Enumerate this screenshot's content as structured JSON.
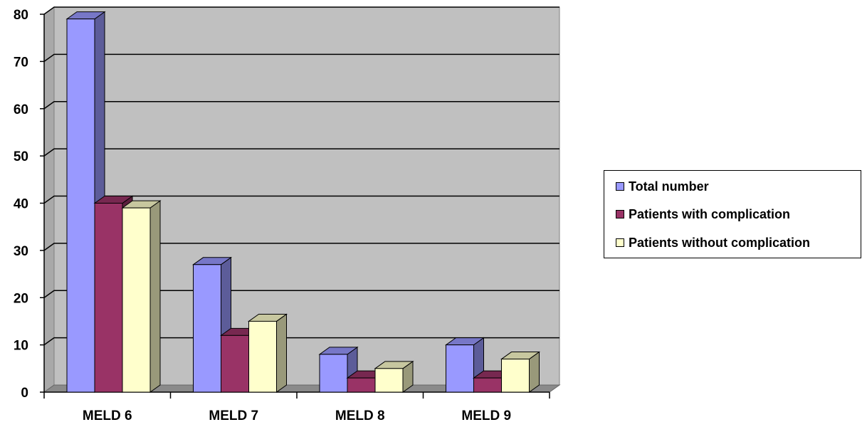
{
  "chart_data": {
    "type": "bar",
    "categories": [
      "MELD 6",
      "MELD 7",
      "MELD 8",
      "MELD 9"
    ],
    "series": [
      {
        "name": "Total number",
        "values": [
          79,
          27,
          8,
          10
        ],
        "color": "#9999ff"
      },
      {
        "name": "Patients with complication",
        "values": [
          40,
          12,
          3,
          3
        ],
        "color": "#993366"
      },
      {
        "name": "Patients without complication",
        "values": [
          39,
          15,
          5,
          7
        ],
        "color": "#ffffcc"
      }
    ],
    "y_ticks": [
      "0",
      "10",
      "20",
      "30",
      "40",
      "50",
      "60",
      "70",
      "80"
    ],
    "ylim": [
      0,
      80
    ],
    "grid": true,
    "legend_position": "right",
    "plot_background": "#c0c0c0"
  }
}
